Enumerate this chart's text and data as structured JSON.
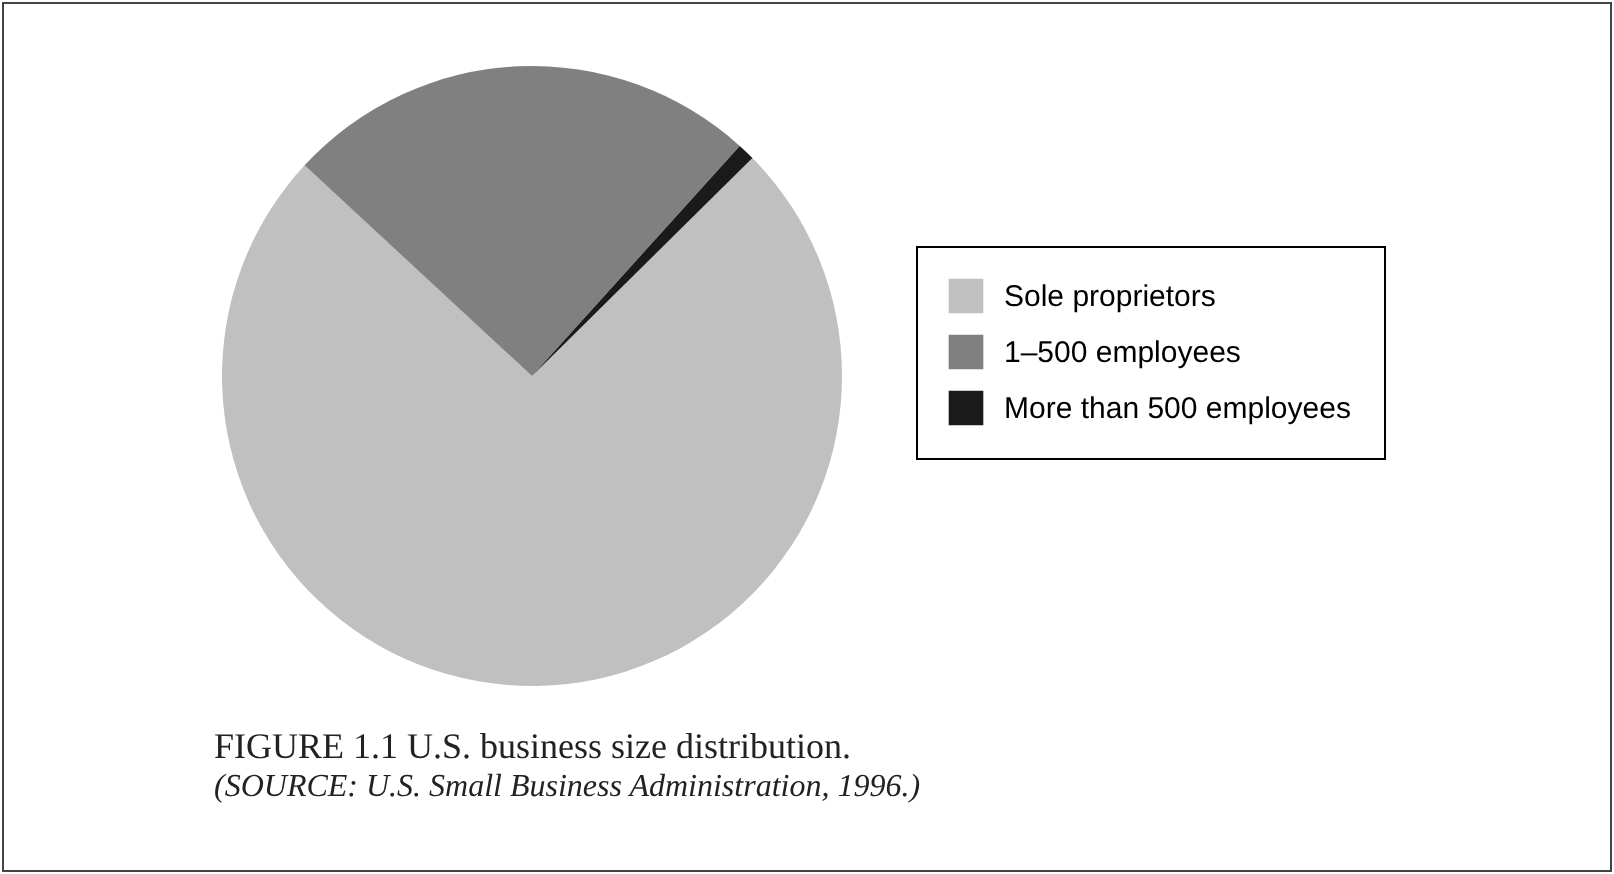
{
  "chart_data": {
    "type": "pie",
    "title": "FIGURE 1.1 U.S. business size distribution.",
    "annotations": [
      "(SOURCE: U.S. Small Business Administration, 1996.)"
    ],
    "categories": [
      "Sole proprietors",
      "1–500 employees",
      "More than 500 employees"
    ],
    "values": [
      74.3,
      24.8,
      0.9
    ],
    "colors": [
      "#c0c0c0",
      "#808080",
      "#1a1a1a"
    ],
    "legend": "right"
  }
}
